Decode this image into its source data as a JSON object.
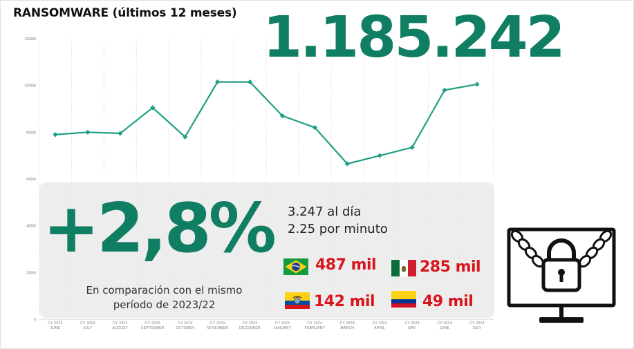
{
  "title": "RANSOMWARE (últimos 12 meses)",
  "total": "1.185.242",
  "change": "+2,8%",
  "comparison_line1": "En comparación con el mismo",
  "comparison_line2": "período de 2023/22",
  "per_day": "3.247 al día",
  "per_minute": "2.25 por minuto",
  "countries": [
    {
      "flag": "brazil-flag",
      "value": "487 mil"
    },
    {
      "flag": "mexico-flag",
      "value": "285 mil"
    },
    {
      "flag": "ecuador-flag",
      "value": "142 mil"
    },
    {
      "flag": "colombia-flag",
      "value": "49 mil"
    }
  ],
  "icon": "locked-computer-icon",
  "colors": {
    "accent": "#0f7e63",
    "line": "#1f9e85",
    "highlight": "#d8151c"
  },
  "chart_data": {
    "type": "line",
    "categories": [
      [
        "CY 2023",
        "JUNE"
      ],
      [
        "CY 2023",
        "JULY"
      ],
      [
        "CY 2023",
        "AUGUST"
      ],
      [
        "CY 2023",
        "SEPTEMBER"
      ],
      [
        "CY 2023",
        "OCTOBER"
      ],
      [
        "CY 2023",
        "NOVEMBER"
      ],
      [
        "CY 2023",
        "DECEMBER"
      ],
      [
        "CY 2024",
        "JANUARY"
      ],
      [
        "CY 2024",
        "FEBRUARY"
      ],
      [
        "CY 2024",
        "MARCH"
      ],
      [
        "CY 2024",
        "APRIL"
      ],
      [
        "CY 2024",
        "MAY"
      ],
      [
        "CY 2024",
        "JUNE"
      ],
      [
        "CY 2024",
        "JULY"
      ]
    ],
    "values": [
      79000,
      80000,
      79500,
      90500,
      78000,
      101500,
      101500,
      87000,
      82000,
      66500,
      70000,
      73500,
      98000,
      100500
    ],
    "yticks": [
      0,
      20000,
      40000,
      60000,
      80000,
      100000,
      120000
    ],
    "ylim": [
      0,
      120000
    ],
    "grid": true
  }
}
